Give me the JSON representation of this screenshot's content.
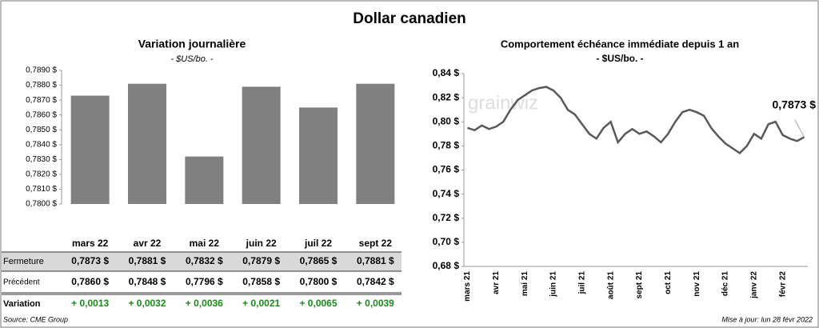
{
  "header": {
    "title": "Dollar canadien",
    "source": "Source: CME Group",
    "updated": "Mise à jour: lun 28 févr 2022",
    "watermark": "grainwiz"
  },
  "chart_data": [
    {
      "type": "bar",
      "title": "Variation  journalière",
      "subtitle": "- $US/bo. -",
      "categories": [
        "mars 22",
        "avr 22",
        "mai 22",
        "juin 22",
        "juil 22",
        "sept 22"
      ],
      "values": [
        0.7873,
        0.7881,
        0.7832,
        0.7879,
        0.7865,
        0.7881
      ],
      "color": "#808080",
      "grid": false,
      "ylim": [
        0.78,
        0.789
      ],
      "yticks": [
        {
          "value": 0.78,
          "label": "0,7800 $"
        },
        {
          "value": 0.781,
          "label": "0,7810 $"
        },
        {
          "value": 0.782,
          "label": "0,7820 $"
        },
        {
          "value": 0.783,
          "label": "0,7830 $"
        },
        {
          "value": 0.784,
          "label": "0,7840 $"
        },
        {
          "value": 0.785,
          "label": "0,7850 $"
        },
        {
          "value": 0.786,
          "label": "0,7860 $"
        },
        {
          "value": 0.787,
          "label": "0,7870 $"
        },
        {
          "value": 0.788,
          "label": "0,7880 $"
        },
        {
          "value": 0.789,
          "label": "0,7890 $"
        }
      ]
    },
    {
      "type": "line",
      "title": "Comportement échéance immédiate depuis 1 an",
      "subtitle": "- $US/bo. -",
      "annotation": "0,7873 $",
      "grid": false,
      "categories": [
        "mars 21",
        null,
        null,
        null,
        "avr 21",
        null,
        null,
        null,
        "mai 21",
        null,
        null,
        null,
        "juin 21",
        null,
        null,
        null,
        "juil 21",
        null,
        null,
        null,
        "août 21",
        null,
        null,
        null,
        "sept 21",
        null,
        null,
        null,
        "oct 21",
        null,
        null,
        null,
        "nov 21",
        null,
        null,
        null,
        "déc 21",
        null,
        null,
        null,
        "janv 22",
        null,
        null,
        null,
        "févr 22",
        null,
        null,
        null
      ],
      "series": [
        {
          "name": "Dollar canadien",
          "color": "#595959",
          "values": [
            0.795,
            0.793,
            0.797,
            0.794,
            0.796,
            0.8,
            0.81,
            0.818,
            0.822,
            0.826,
            0.828,
            0.829,
            0.826,
            0.82,
            0.81,
            0.806,
            0.798,
            0.79,
            0.786,
            0.795,
            0.8,
            0.783,
            0.79,
            0.794,
            0.79,
            0.792,
            0.788,
            0.783,
            0.79,
            0.8,
            0.808,
            0.81,
            0.808,
            0.805,
            0.795,
            0.788,
            0.782,
            0.778,
            0.774,
            0.78,
            0.79,
            0.786,
            0.798,
            0.8,
            0.789,
            0.786,
            0.784,
            0.7873
          ]
        }
      ],
      "ylim": [
        0.68,
        0.84
      ],
      "yticks": [
        {
          "value": 0.68,
          "label": "0,68 $"
        },
        {
          "value": 0.7,
          "label": "0,70 $"
        },
        {
          "value": 0.72,
          "label": "0,72 $"
        },
        {
          "value": 0.74,
          "label": "0,74 $"
        },
        {
          "value": 0.76,
          "label": "0,76 $"
        },
        {
          "value": 0.78,
          "label": "0,78 $"
        },
        {
          "value": 0.8,
          "label": "0,80 $"
        },
        {
          "value": 0.82,
          "label": "0,82 $"
        },
        {
          "value": 0.84,
          "label": "0,84 $"
        }
      ]
    }
  ],
  "table": {
    "rows": [
      {
        "label": "Fermeture",
        "values": [
          "0,7873 $",
          "0,7881 $",
          "0,7832 $",
          "0,7879 $",
          "0,7865 $",
          "0,7881 $"
        ]
      },
      {
        "label": "Précédent",
        "values": [
          "0,7860 $",
          "0,7848 $",
          "0,7796 $",
          "0,7858 $",
          "0,7800 $",
          "0,7842 $"
        ]
      },
      {
        "label": "Variation",
        "values": [
          "+ 0,0013",
          "+ 0,0032",
          "+ 0,0036",
          "+ 0,0021",
          "+ 0,0065",
          "+ 0,0039"
        ]
      }
    ]
  }
}
